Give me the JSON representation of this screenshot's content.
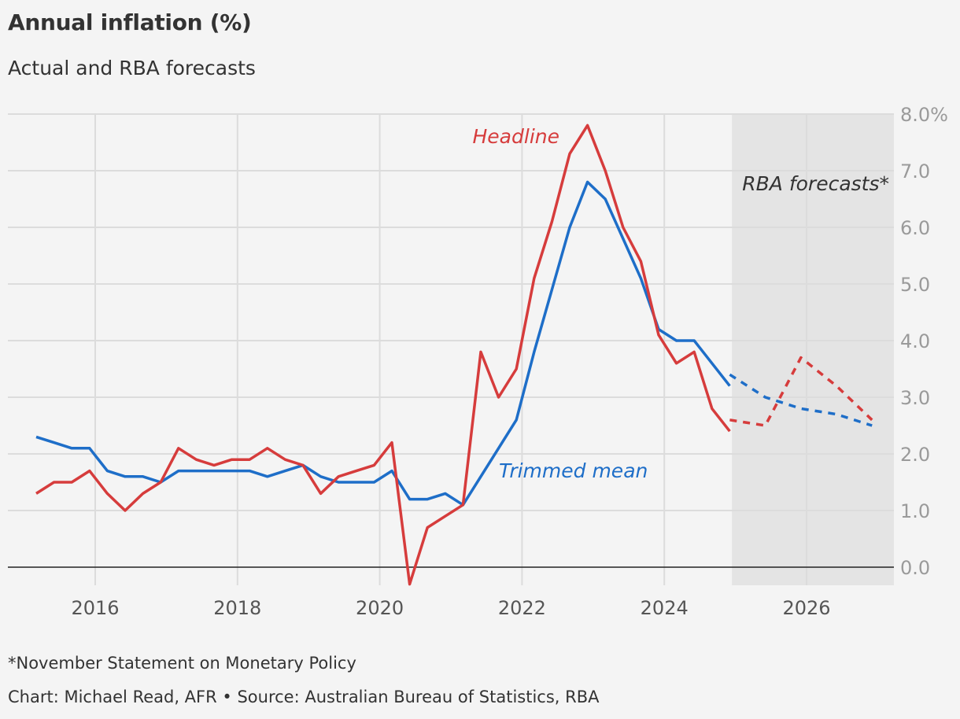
{
  "header": {
    "title": "Annual inflation (%)",
    "subtitle": "Actual and RBA forecasts"
  },
  "footer": {
    "note": "*November Statement on Monetary Policy",
    "source": "Chart: Michael Read, AFR • Source: Australian Bureau of Statistics, RBA"
  },
  "colors": {
    "headline": "#d63c3c",
    "trimmed_mean": "#1e6ec8",
    "grid": "#dcdcdc",
    "zero_line": "#222222",
    "forecast_shade": "#e4e4e4"
  },
  "chart_data": {
    "type": "line",
    "title": "Annual inflation (%)",
    "subtitle": "Actual and RBA forecasts",
    "xlim": [
      2015.0,
      2027.2
    ],
    "ylim": [
      -0.3,
      8.0
    ],
    "x_ticks": [
      2016,
      2018,
      2020,
      2022,
      2024,
      2026
    ],
    "x_tick_labels": [
      "2016",
      "2018",
      "2020",
      "2022",
      "2024",
      "2026"
    ],
    "y_ticks": [
      0,
      1,
      2,
      3,
      4,
      5,
      6,
      7,
      8
    ],
    "y_tick_labels": [
      "0.0",
      "1.0",
      "2.0",
      "3.0",
      "4.0",
      "5.0",
      "6.0",
      "7.0",
      "8.0%"
    ],
    "grid": true,
    "y_axis_side": "right",
    "forecast_region": {
      "from": 2024.95,
      "to": 2027.25,
      "label": "RBA forecasts*"
    },
    "series": [
      {
        "name": "Headline",
        "style": "solid",
        "x": [
          2015.17,
          2015.42,
          2015.67,
          2015.92,
          2016.17,
          2016.42,
          2016.67,
          2016.92,
          2017.17,
          2017.42,
          2017.67,
          2017.92,
          2018.17,
          2018.42,
          2018.67,
          2018.92,
          2019.17,
          2019.42,
          2019.67,
          2019.92,
          2020.17,
          2020.42,
          2020.67,
          2020.92,
          2021.17,
          2021.42,
          2021.67,
          2021.92,
          2022.17,
          2022.42,
          2022.67,
          2022.92,
          2023.17,
          2023.42,
          2023.67,
          2023.92,
          2024.17,
          2024.42,
          2024.67,
          2024.92
        ],
        "values": [
          1.3,
          1.5,
          1.5,
          1.7,
          1.3,
          1.0,
          1.3,
          1.5,
          2.1,
          1.9,
          1.8,
          1.9,
          1.9,
          2.1,
          1.9,
          1.8,
          1.3,
          1.6,
          1.7,
          1.8,
          2.2,
          -0.3,
          0.7,
          0.9,
          1.1,
          3.8,
          3.0,
          3.5,
          5.1,
          6.1,
          7.3,
          7.8,
          7.0,
          6.0,
          5.4,
          4.1,
          3.6,
          3.8,
          2.8,
          2.4
        ]
      },
      {
        "name": "Trimmed mean",
        "style": "solid",
        "x": [
          2015.17,
          2015.42,
          2015.67,
          2015.92,
          2016.17,
          2016.42,
          2016.67,
          2016.92,
          2017.17,
          2017.42,
          2017.67,
          2017.92,
          2018.17,
          2018.42,
          2018.67,
          2018.92,
          2019.17,
          2019.42,
          2019.67,
          2019.92,
          2020.17,
          2020.42,
          2020.67,
          2020.92,
          2021.17,
          2021.42,
          2021.67,
          2021.92,
          2022.17,
          2022.42,
          2022.67,
          2022.92,
          2023.17,
          2023.42,
          2023.67,
          2023.92,
          2024.17,
          2024.42,
          2024.67,
          2024.92
        ],
        "values": [
          2.3,
          2.2,
          2.1,
          2.1,
          1.7,
          1.6,
          1.6,
          1.5,
          1.7,
          1.7,
          1.7,
          1.7,
          1.7,
          1.6,
          1.7,
          1.8,
          1.6,
          1.5,
          1.5,
          1.5,
          1.7,
          1.2,
          1.2,
          1.3,
          1.1,
          1.6,
          2.1,
          2.6,
          3.8,
          4.9,
          6.0,
          6.8,
          6.5,
          5.8,
          5.1,
          4.2,
          4.0,
          4.0,
          3.6,
          3.2
        ]
      },
      {
        "name": "Headline forecast",
        "style": "dashed",
        "x": [
          2024.92,
          2025.42,
          2025.92,
          2026.42,
          2026.92
        ],
        "values": [
          2.6,
          2.5,
          3.7,
          3.2,
          2.6
        ]
      },
      {
        "name": "Trimmed mean forecast",
        "style": "dashed",
        "x": [
          2024.92,
          2025.42,
          2025.92,
          2026.42,
          2026.92
        ],
        "values": [
          3.4,
          3.0,
          2.8,
          2.7,
          2.5
        ]
      }
    ],
    "annotations": [
      "Headline",
      "Trimmed mean",
      "RBA forecasts*"
    ]
  }
}
